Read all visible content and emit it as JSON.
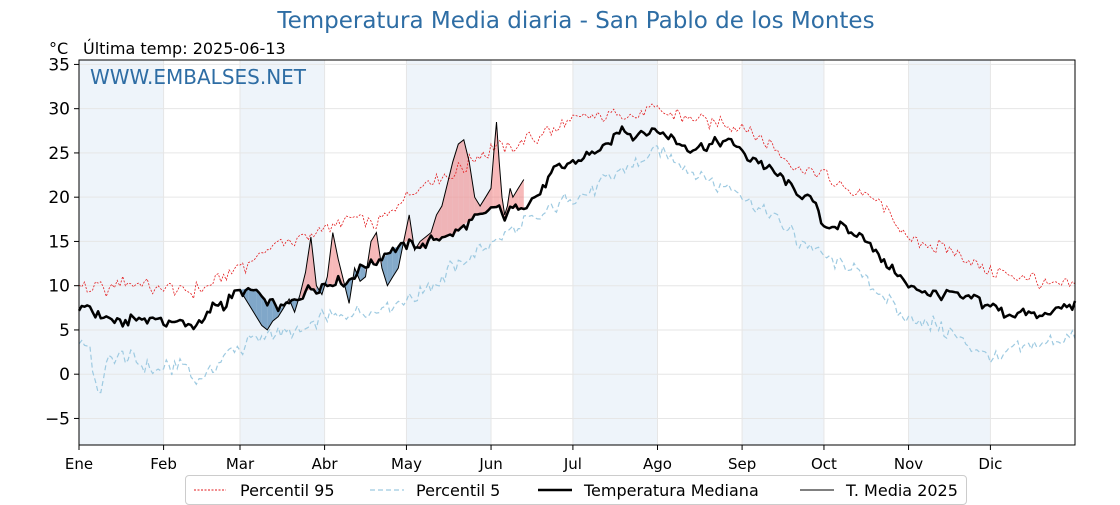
{
  "header": {
    "title": "Temperatura Media diaria - San Pablo de los Montes",
    "unit": "°C",
    "last_temp": "Última temp: 2025-06-13",
    "watermark": "WWW.EMBALSES.NET"
  },
  "colors": {
    "title": "#2e6da4",
    "watermark": "#2e6da4",
    "p95": "#e31a1c",
    "p5": "#9ecae1",
    "median": "#000000",
    "current": "#000000",
    "above_fill": "#f08080",
    "below_fill": "#5b8db8",
    "month_band": "#eef4fa"
  },
  "chart_data": {
    "type": "line",
    "title": "Temperatura Media diaria - San Pablo de los Montes",
    "ylabel": "°C",
    "xlabel": "",
    "ylim": [
      -8,
      35.5
    ],
    "xlim": [
      1,
      366
    ],
    "yticks": [
      -5,
      0,
      5,
      10,
      15,
      20,
      25,
      30,
      35
    ],
    "ytick_labels": [
      "−5",
      "0",
      "5",
      "10",
      "15",
      "20",
      "25",
      "30",
      "35"
    ],
    "months": [
      {
        "label": "Ene",
        "day": 1
      },
      {
        "label": "Feb",
        "day": 32
      },
      {
        "label": "Mar",
        "day": 60
      },
      {
        "label": "Abr",
        "day": 91
      },
      {
        "label": "May",
        "day": 121
      },
      {
        "label": "Jun",
        "day": 152
      },
      {
        "label": "Jul",
        "day": 182
      },
      {
        "label": "Ago",
        "day": 213
      },
      {
        "label": "Sep",
        "day": 244
      },
      {
        "label": "Oct",
        "day": 274
      },
      {
        "label": "Nov",
        "day": 305
      },
      {
        "label": "Dic",
        "day": 335
      }
    ],
    "grid": true,
    "legend_position": "bottom",
    "series": [
      {
        "key": "p95",
        "name": "Percentil 95",
        "x": [
          1,
          10,
          20,
          31,
          45,
          60,
          75,
          85,
          91,
          100,
          110,
          121,
          130,
          140,
          152,
          160,
          170,
          182,
          195,
          205,
          213,
          225,
          235,
          244,
          255,
          265,
          274,
          285,
          295,
          305,
          315,
          325,
          335,
          345,
          355,
          366
        ],
        "y": [
          10,
          9.5,
          10.5,
          9.5,
          9.5,
          12,
          15,
          15.5,
          16.5,
          17.5,
          17,
          20,
          22,
          23,
          25.5,
          25.5,
          27,
          28.5,
          29.5,
          29.5,
          30,
          29,
          28.5,
          28,
          26,
          23,
          22.5,
          20.5,
          19.5,
          15,
          14.5,
          13,
          11.5,
          11,
          10.5,
          10
        ]
      },
      {
        "key": "p5",
        "name": "Percentil 5",
        "x": [
          1,
          5,
          8,
          12,
          18,
          25,
          31,
          40,
          45,
          55,
          60,
          70,
          80,
          91,
          100,
          110,
          121,
          130,
          140,
          152,
          160,
          170,
          182,
          190,
          200,
          210,
          213,
          220,
          230,
          244,
          255,
          265,
          274,
          285,
          295,
          305,
          315,
          325,
          335,
          340,
          345,
          355,
          366
        ],
        "y": [
          4,
          3,
          -2.5,
          1.5,
          2,
          1,
          0.5,
          1,
          -1,
          2,
          3,
          4.5,
          4.5,
          6.5,
          7,
          7.5,
          8.5,
          10,
          12.5,
          15,
          16,
          18,
          20,
          21,
          23,
          24.5,
          25,
          24,
          22,
          20.5,
          18,
          15,
          13,
          12,
          9,
          6,
          5.5,
          4,
          2,
          2,
          3,
          3.5,
          4.5
        ]
      },
      {
        "key": "median",
        "name": "Temperatura Mediana",
        "x": [
          1,
          5,
          10,
          15,
          20,
          25,
          31,
          38,
          45,
          50,
          55,
          60,
          65,
          70,
          75,
          80,
          85,
          91,
          96,
          100,
          105,
          110,
          115,
          121,
          125,
          130,
          135,
          140,
          145,
          150,
          152,
          157,
          160,
          165,
          170,
          175,
          182,
          190,
          195,
          200,
          205,
          210,
          213,
          218,
          222,
          226,
          230,
          235,
          240,
          244,
          250,
          255,
          260,
          265,
          270,
          274,
          280,
          285,
          290,
          295,
          300,
          305,
          310,
          315,
          320,
          325,
          330,
          335,
          340,
          345,
          350,
          355,
          360,
          366
        ],
        "y": [
          7.5,
          7.5,
          6.5,
          6,
          6,
          6.5,
          6,
          6,
          5.5,
          7.5,
          8,
          9.5,
          9.5,
          8,
          7.5,
          8.5,
          9.5,
          10,
          10.5,
          10.5,
          12,
          12.5,
          14,
          14.5,
          14.5,
          15,
          15.5,
          16.5,
          17.5,
          18,
          19,
          18,
          18.5,
          19,
          20.5,
          23,
          24,
          25,
          26,
          27.5,
          27,
          27.5,
          27.5,
          27,
          26,
          25.5,
          26,
          26,
          26.5,
          25,
          24,
          23,
          22,
          20.5,
          19.5,
          17,
          16.5,
          16,
          15,
          13,
          11.5,
          10,
          9.5,
          9,
          9,
          8.5,
          8.5,
          7.5,
          7,
          7,
          6.5,
          6.5,
          7.5,
          8
        ]
      },
      {
        "key": "current",
        "name": "T. Media 2025",
        "x": [
          60,
          63,
          66,
          68,
          70,
          72,
          74,
          76,
          78,
          80,
          82,
          84,
          86,
          88,
          90,
          92,
          94,
          96,
          98,
          100,
          102,
          104,
          106,
          108,
          110,
          112,
          114,
          116,
          118,
          120,
          122,
          124,
          126,
          128,
          130,
          132,
          134,
          136,
          138,
          140,
          142,
          144,
          146,
          148,
          150,
          152,
          153,
          154,
          155,
          156,
          157,
          158,
          159,
          160,
          162,
          164
        ],
        "y": [
          9.5,
          8,
          6.5,
          5.5,
          5,
          6,
          6.5,
          7.5,
          8.5,
          7,
          9,
          11.5,
          15.5,
          10,
          9,
          11,
          16,
          13,
          10.5,
          8,
          12,
          10.5,
          11,
          15,
          16,
          12,
          10,
          11,
          12,
          15,
          18,
          14,
          15,
          15.5,
          16,
          18,
          19,
          21.5,
          24,
          26,
          26.5,
          24,
          20,
          19,
          20,
          21,
          25,
          28.5,
          24,
          20,
          18,
          19,
          21,
          20,
          21,
          22
        ]
      }
    ]
  },
  "legend": [
    {
      "key": "p95",
      "label": "Percentil 95"
    },
    {
      "key": "p5",
      "label": "Percentil 5"
    },
    {
      "key": "median",
      "label": "Temperatura Mediana"
    },
    {
      "key": "current",
      "label": "T. Media 2025"
    }
  ]
}
